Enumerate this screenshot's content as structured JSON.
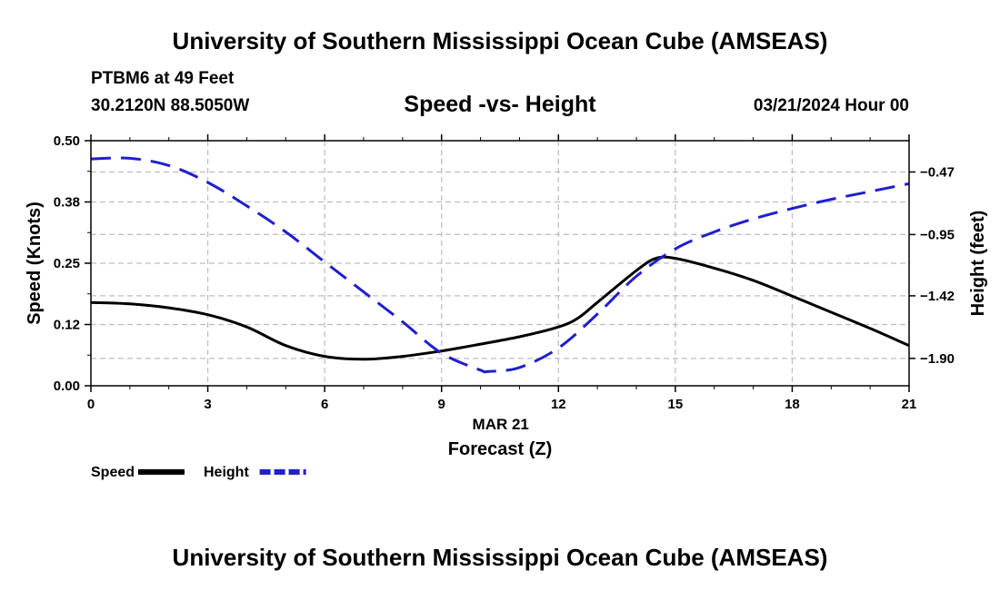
{
  "header": {
    "title_top": "University of Southern Mississippi Ocean Cube (AMSEAS)",
    "station": "PTBM6 at 49 Feet",
    "coords": "30.2120N  88.5050W",
    "subtitle": "Speed -vs- Height",
    "datetime": "03/21/2024 Hour 00",
    "title_bottom": "University of Southern Mississippi Ocean Cube (AMSEAS)"
  },
  "chart_data": {
    "type": "line",
    "title": "Speed -vs- Height",
    "xlabel": "Forecast (Z)",
    "xdate_label": "MAR 21",
    "ylabel_left": "Speed (Knots)",
    "ylabel_right": "Height (feet)",
    "xlim": [
      0,
      21
    ],
    "ylim_left": [
      0,
      0.5
    ],
    "ylim_right": [
      -2.11,
      -0.23
    ],
    "x_ticks": [
      0,
      3,
      6,
      9,
      12,
      15,
      18,
      21
    ],
    "x_tick_labels": [
      "0",
      "3",
      "6",
      "9",
      "12",
      "15",
      "18",
      "21"
    ],
    "y_left_ticks": [
      0,
      0.125,
      0.25,
      0.375,
      0.5
    ],
    "y_left_tick_labels": [
      "0.00",
      "0.12",
      "0.25",
      "0.38",
      "0.50"
    ],
    "y_right_ticks": [
      -0.47,
      -0.95,
      -1.42,
      -1.9
    ],
    "y_right_tick_labels": [
      "-0.47",
      "-0.95",
      "-1.42",
      "-1.90"
    ],
    "grid": true,
    "series": [
      {
        "name": "Speed",
        "axis": "left",
        "color": "#000000",
        "style": "solid",
        "x": [
          0,
          1,
          2,
          3,
          4,
          5,
          6,
          7,
          8,
          9,
          10,
          11,
          12,
          12.5,
          13,
          14,
          14.5,
          15,
          16,
          17,
          18,
          19,
          20,
          21
        ],
        "values": [
          0.17,
          0.167,
          0.159,
          0.145,
          0.12,
          0.082,
          0.06,
          0.054,
          0.06,
          0.071,
          0.085,
          0.1,
          0.12,
          0.138,
          0.17,
          0.235,
          0.26,
          0.26,
          0.24,
          0.215,
          0.183,
          0.15,
          0.117,
          0.082
        ]
      },
      {
        "name": "Height",
        "axis": "right",
        "color": "#1f1fcc",
        "style": "dashed",
        "x": [
          0,
          1,
          2,
          3,
          4,
          5,
          6,
          7,
          8,
          9,
          10,
          10.2,
          11,
          12,
          13,
          14,
          15,
          16,
          17,
          18,
          19,
          20,
          21
        ],
        "values": [
          -0.37,
          -0.365,
          -0.42,
          -0.55,
          -0.73,
          -0.93,
          -1.16,
          -1.39,
          -1.62,
          -1.86,
          -1.99,
          -2.0,
          -1.97,
          -1.82,
          -1.56,
          -1.27,
          -1.06,
          -0.93,
          -0.83,
          -0.75,
          -0.68,
          -0.62,
          -0.56
        ]
      }
    ],
    "legend": [
      {
        "label": "Speed",
        "color": "#000000",
        "style": "solid"
      },
      {
        "label": "Height",
        "color": "#1f1fcc",
        "style": "dashed"
      }
    ]
  }
}
